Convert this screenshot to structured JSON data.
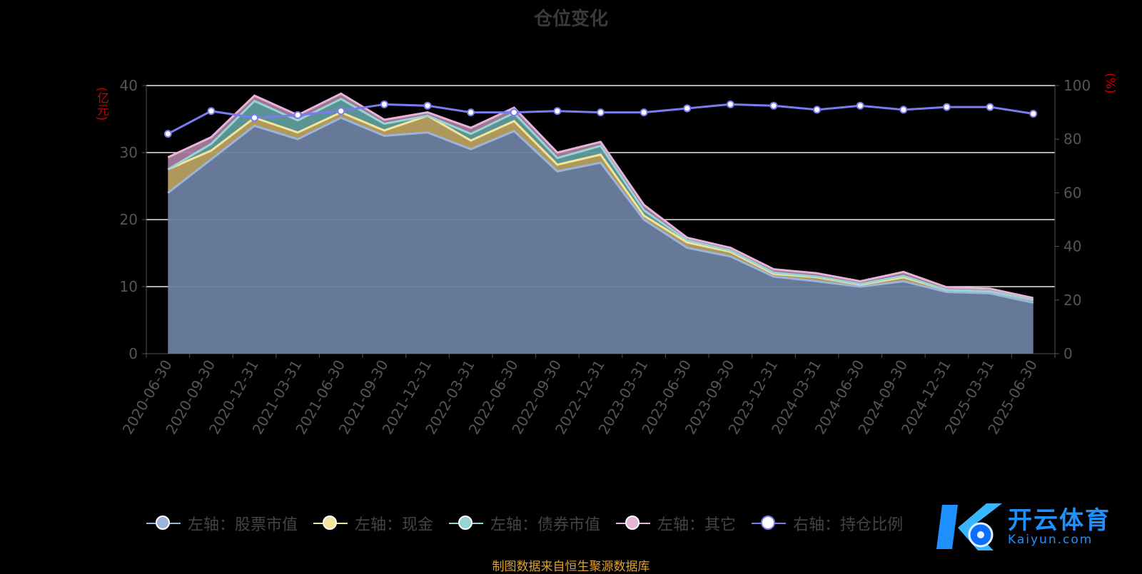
{
  "title": "仓位变化",
  "left_unit": "(亿元)",
  "right_unit": "(%)",
  "source_note": "制图数据来自恒生聚源数据库",
  "watermark": {
    "name": "开云体育",
    "url": "Kaiyun.com"
  },
  "legend": [
    {
      "label": "左轴：股票市值",
      "color": "#9ab4dd"
    },
    {
      "label": "左轴：现金",
      "color": "#f4e49b"
    },
    {
      "label": "左轴：债券市值",
      "color": "#98d4d4"
    },
    {
      "label": "左轴：其它",
      "color": "#e6b3d9"
    },
    {
      "label": "右轴：持仓比例",
      "color": "#7b7bef"
    }
  ],
  "chart_data": {
    "type": "area",
    "x": [
      "2020-06-30",
      "2020-09-30",
      "2020-12-31",
      "2021-03-31",
      "2021-06-30",
      "2021-09-30",
      "2021-12-31",
      "2022-03-31",
      "2022-06-30",
      "2022-09-30",
      "2022-12-31",
      "2023-03-31",
      "2023-06-30",
      "2023-09-30",
      "2023-12-31",
      "2024-03-31",
      "2024-06-30",
      "2024-09-30",
      "2024-12-31",
      "2025-03-31",
      "2025-06-30"
    ],
    "left_axis": {
      "ylim": [
        0,
        40
      ],
      "ticks": [
        0,
        10,
        20,
        30,
        40
      ]
    },
    "right_axis": {
      "ylim": [
        0,
        100
      ],
      "ticks": [
        0,
        20,
        40,
        60,
        80,
        100
      ]
    },
    "stacked_series": [
      {
        "name": "左轴：股票市值",
        "color": "#9ab4dd",
        "values": [
          24.0,
          29.0,
          34.0,
          32.0,
          35.2,
          32.5,
          33.0,
          30.5,
          33.2,
          27.2,
          28.5,
          20.0,
          15.8,
          14.5,
          11.5,
          10.8,
          10.0,
          10.8,
          9.2,
          9.0,
          7.6
        ]
      },
      {
        "name": "左轴：现金",
        "color": "#f4e49b",
        "values": [
          3.5,
          1.3,
          1.2,
          1.0,
          0.8,
          0.8,
          2.5,
          1.3,
          1.5,
          1.0,
          1.2,
          0.6,
          0.8,
          0.7,
          0.4,
          0.6,
          0.3,
          0.6,
          0.3,
          0.3,
          0.4
        ]
      },
      {
        "name": "左轴：债券市值",
        "color": "#98d4d4",
        "values": [
          0.0,
          1.0,
          2.5,
          1.8,
          2.0,
          1.0,
          0.0,
          1.0,
          1.2,
          1.0,
          1.3,
          0.8,
          0.3,
          0.2,
          0.2,
          0.1,
          0.1,
          0.2,
          0.0,
          0.0,
          0.0
        ]
      },
      {
        "name": "左轴：其它",
        "color": "#e6b3d9",
        "values": [
          1.8,
          1.0,
          0.8,
          0.8,
          0.8,
          0.6,
          0.5,
          0.9,
          0.8,
          0.8,
          0.6,
          0.8,
          0.4,
          0.4,
          0.5,
          0.5,
          0.4,
          0.6,
          0.4,
          0.4,
          0.3
        ]
      }
    ],
    "line_series": {
      "name": "右轴：持仓比例",
      "color": "#7b7bef",
      "axis": "right",
      "values": [
        82.0,
        90.5,
        88.0,
        89.0,
        90.5,
        93.0,
        92.5,
        90.0,
        90.0,
        90.5,
        90.0,
        90.0,
        91.5,
        93.0,
        92.5,
        91.0,
        92.5,
        91.0,
        92.0,
        92.0,
        89.5
      ]
    },
    "grid": true
  }
}
